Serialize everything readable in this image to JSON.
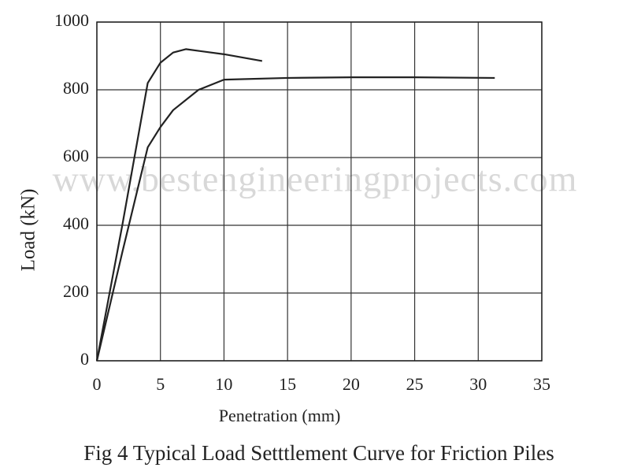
{
  "chart_data": {
    "type": "line",
    "title": "Fig 4 Typical Load Setttlement Curve for Friction Piles",
    "xlabel": "Penetration (mm)",
    "ylabel": "Load (kN)",
    "watermark": "www.bestengineeringprojects.com",
    "series": [
      {
        "color": "#222222",
        "x": [
          0,
          2,
          4,
          5,
          6,
          7,
          8,
          10,
          13
        ],
        "values": [
          0,
          400,
          820,
          880,
          910,
          920,
          915,
          905,
          885
        ]
      },
      {
        "color": "#222222",
        "x": [
          0,
          2,
          4,
          5,
          6,
          8,
          10,
          15,
          20,
          25,
          31.3
        ],
        "values": [
          0,
          320,
          630,
          690,
          740,
          800,
          830,
          835,
          837,
          837,
          835
        ]
      }
    ],
    "xlim": [
      0,
      35
    ],
    "xticks": [
      0,
      5,
      10,
      15,
      20,
      25,
      30,
      35
    ],
    "ylim": [
      0,
      1000
    ],
    "yticks": [
      0,
      200,
      400,
      600,
      800,
      1000
    ],
    "grid": true
  }
}
